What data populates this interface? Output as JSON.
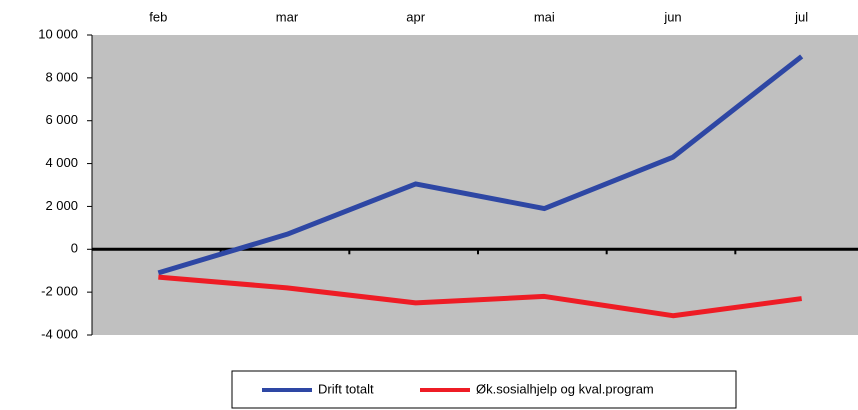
{
  "chart_data": {
    "type": "line",
    "categories": [
      "feb",
      "mar",
      "apr",
      "mai",
      "jun",
      "jul"
    ],
    "series": [
      {
        "name": "Drift totalt",
        "color": "#2e47a4",
        "values": [
          -1100,
          700,
          3050,
          1900,
          4300,
          9000
        ]
      },
      {
        "name": "Øk.sosialhjelp og kval.program",
        "color": "#ee1c25",
        "values": [
          -1300,
          -1800,
          -2500,
          -2200,
          -3100,
          -2300
        ]
      }
    ],
    "ylim": [
      -4000,
      10000
    ],
    "yticks": [
      {
        "value": -4000,
        "label": "-4 000"
      },
      {
        "value": -2000,
        "label": "-2 000"
      },
      0,
      {
        "value": 2000,
        "label": "2 000"
      },
      {
        "value": 4000,
        "label": "4 000"
      },
      {
        "value": 6000,
        "label": "6 000"
      },
      {
        "value": 8000,
        "label": "8 000"
      },
      {
        "value": 10000,
        "label": "10 000"
      }
    ],
    "legend": "bottom"
  }
}
